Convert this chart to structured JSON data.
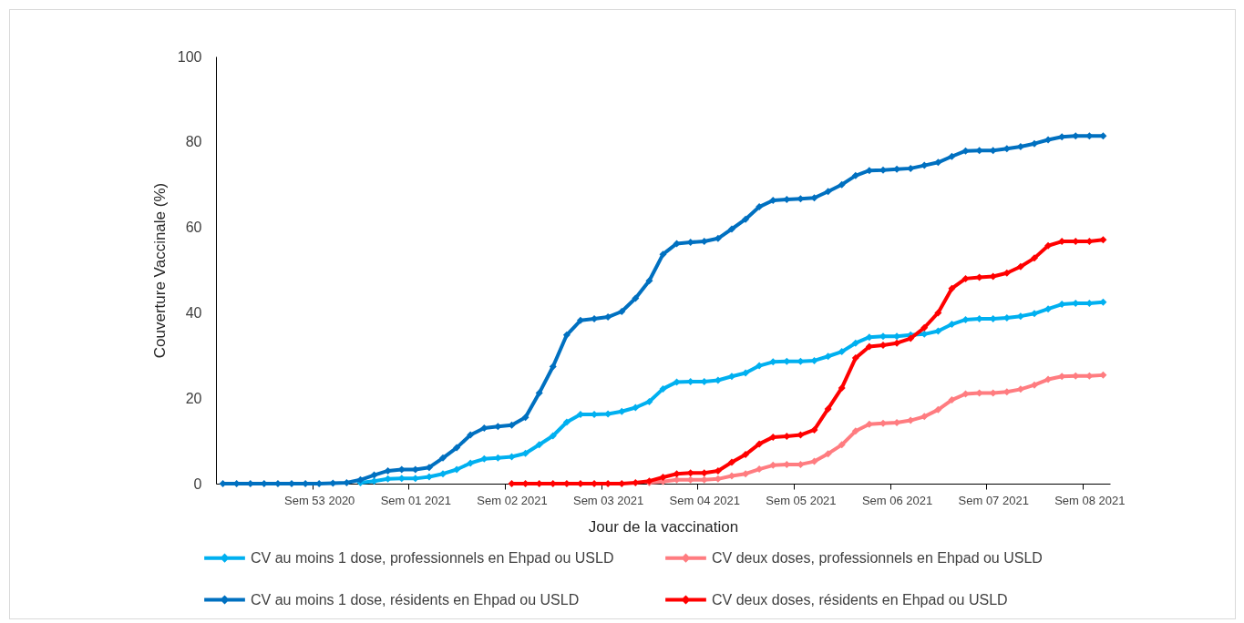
{
  "chart_data": {
    "type": "line",
    "xlabel": "Jour de la vaccination",
    "ylabel": "Couverture Vaccinale (%)",
    "categories": [
      null,
      null,
      null,
      null,
      null,
      null,
      null,
      "Sem 53 2020",
      null,
      null,
      null,
      null,
      null,
      null,
      "Sem 01 2021",
      null,
      null,
      null,
      null,
      null,
      null,
      "Sem 02 2021",
      null,
      null,
      null,
      null,
      null,
      null,
      "Sem 03 2021",
      null,
      null,
      null,
      null,
      null,
      null,
      "Sem 04 2021",
      null,
      null,
      null,
      null,
      null,
      null,
      "Sem 05 2021",
      null,
      null,
      null,
      null,
      null,
      null,
      "Sem 06 2021",
      null,
      null,
      null,
      null,
      null,
      null,
      "Sem 07 2021",
      null,
      null,
      null,
      null,
      null,
      null,
      "Sem 08 2021",
      null
    ],
    "series": [
      {
        "name": "CV au moins 1 dose, professionnels en Ehpad ou USLD",
        "color": "#00b0f0",
        "values": [
          null,
          null,
          null,
          null,
          null,
          null,
          null,
          null,
          null,
          null,
          0.2,
          0.6,
          1.1,
          1.2,
          1.2,
          1.6,
          2.3,
          3.3,
          4.8,
          5.8,
          6.0,
          6.3,
          7.1,
          9.1,
          11.2,
          14.4,
          16.2,
          16.2,
          16.3,
          16.9,
          17.8,
          19.2,
          22.2,
          23.8,
          23.9,
          23.9,
          24.2,
          25.1,
          25.9,
          27.6,
          28.5,
          28.6,
          28.6,
          28.8,
          29.8,
          30.9,
          32.9,
          34.3,
          34.5,
          34.5,
          34.8,
          35.0,
          35.7,
          37.3,
          38.4,
          38.6,
          38.6,
          38.8,
          39.2,
          39.8,
          40.9,
          42.0,
          42.2,
          42.2,
          42.5
        ]
      },
      {
        "name": "CV deux doses, professionnels en Ehpad ou USLD",
        "color": "#ff7c80",
        "values": [
          null,
          null,
          null,
          null,
          null,
          null,
          null,
          null,
          null,
          null,
          null,
          null,
          null,
          null,
          null,
          null,
          null,
          null,
          null,
          null,
          null,
          null,
          null,
          null,
          null,
          null,
          null,
          null,
          null,
          null,
          null,
          0.2,
          0.5,
          0.9,
          0.9,
          0.9,
          1.1,
          1.8,
          2.3,
          3.4,
          4.3,
          4.5,
          4.5,
          5.2,
          7.0,
          9.1,
          12.3,
          13.9,
          14.1,
          14.3,
          14.8,
          15.7,
          17.3,
          19.6,
          21.0,
          21.2,
          21.2,
          21.5,
          22.1,
          23.1,
          24.4,
          25.1,
          25.2,
          25.2,
          25.4
        ]
      },
      {
        "name": "CV au moins 1 dose, résidents en Ehpad ou USLD",
        "color": "#0070c0",
        "values": [
          0,
          0,
          0,
          0,
          0,
          0,
          0,
          0,
          0.1,
          0.2,
          0.9,
          2.0,
          3.0,
          3.3,
          3.3,
          3.8,
          6.0,
          8.4,
          11.4,
          13.0,
          13.4,
          13.7,
          15.5,
          21.2,
          27.4,
          34.8,
          38.2,
          38.6,
          39.0,
          40.3,
          43.4,
          47.5,
          53.7,
          56.2,
          56.5,
          56.7,
          57.4,
          59.6,
          61.9,
          64.8,
          66.3,
          66.5,
          66.7,
          66.9,
          68.4,
          70.0,
          72.1,
          73.3,
          73.4,
          73.6,
          73.8,
          74.5,
          75.2,
          76.6,
          77.9,
          78.0,
          78.0,
          78.4,
          78.9,
          79.6,
          80.5,
          81.2,
          81.4,
          81.4,
          81.4
        ]
      },
      {
        "name": "CV deux doses, résidents en Ehpad ou USLD",
        "color": "#ff0000",
        "values": [
          null,
          null,
          null,
          null,
          null,
          null,
          null,
          null,
          null,
          null,
          null,
          null,
          null,
          null,
          null,
          null,
          null,
          null,
          null,
          null,
          null,
          0,
          0,
          0,
          0,
          0,
          0,
          0,
          0,
          0,
          0.2,
          0.6,
          1.5,
          2.3,
          2.5,
          2.5,
          3.0,
          5.0,
          6.8,
          9.3,
          10.9,
          11.1,
          11.4,
          12.6,
          17.5,
          22.4,
          29.4,
          32.1,
          32.4,
          32.9,
          34.0,
          36.5,
          40.0,
          45.7,
          48.0,
          48.3,
          48.5,
          49.3,
          50.8,
          52.8,
          55.7,
          56.7,
          56.7,
          56.7,
          57.1
        ]
      }
    ],
    "ylim": [
      0,
      100
    ],
    "yticks": [
      0,
      20,
      40,
      60,
      80,
      100
    ],
    "legend": "bottom",
    "marker": "diamond"
  }
}
